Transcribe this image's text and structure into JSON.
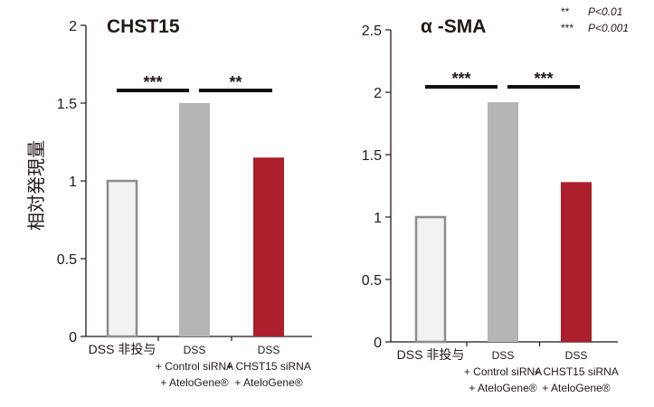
{
  "y_axis_label": "相対発現量",
  "chart_data": [
    {
      "type": "bar",
      "title": "CHST15",
      "ylim": [
        0,
        2
      ],
      "y_ticks": [
        "0",
        "0.5",
        "1",
        "1.5",
        "2"
      ],
      "categories": [
        [
          "DSS 非投与"
        ],
        [
          "DSS",
          "+ Control siRNA",
          "+ AteloGene®"
        ],
        [
          "DSS",
          "+ CHST15 siRNA",
          "+ AteloGene®"
        ]
      ],
      "values": [
        1.0,
        1.5,
        1.15
      ],
      "colors": [
        "#f2f2f2",
        "#b5b5b5",
        "#ac1f2d"
      ],
      "significance": [
        {
          "from": 0,
          "to": 1,
          "label": "***"
        },
        {
          "from": 1,
          "to": 2,
          "label": "**"
        }
      ]
    },
    {
      "type": "bar",
      "title": "α -SMA",
      "ylim": [
        0,
        2.5
      ],
      "y_ticks": [
        "0",
        "0.5",
        "1",
        "1.5",
        "2",
        "2.5"
      ],
      "categories": [
        [
          "DSS 非投与"
        ],
        [
          "DSS",
          "+ Control siRNA",
          "+ AteloGene®"
        ],
        [
          "DSS",
          "+ CHST15 siRNA",
          "+ AteloGene®"
        ]
      ],
      "values": [
        1.0,
        1.92,
        1.28
      ],
      "colors": [
        "#f2f2f2",
        "#b5b5b5",
        "#ac1f2d"
      ],
      "significance": [
        {
          "from": 0,
          "to": 1,
          "label": "***"
        },
        {
          "from": 1,
          "to": 2,
          "label": "***"
        }
      ]
    }
  ],
  "legend": [
    {
      "stars": "**",
      "text": "P<0.01"
    },
    {
      "stars": "***",
      "text": "P<0.001"
    }
  ]
}
